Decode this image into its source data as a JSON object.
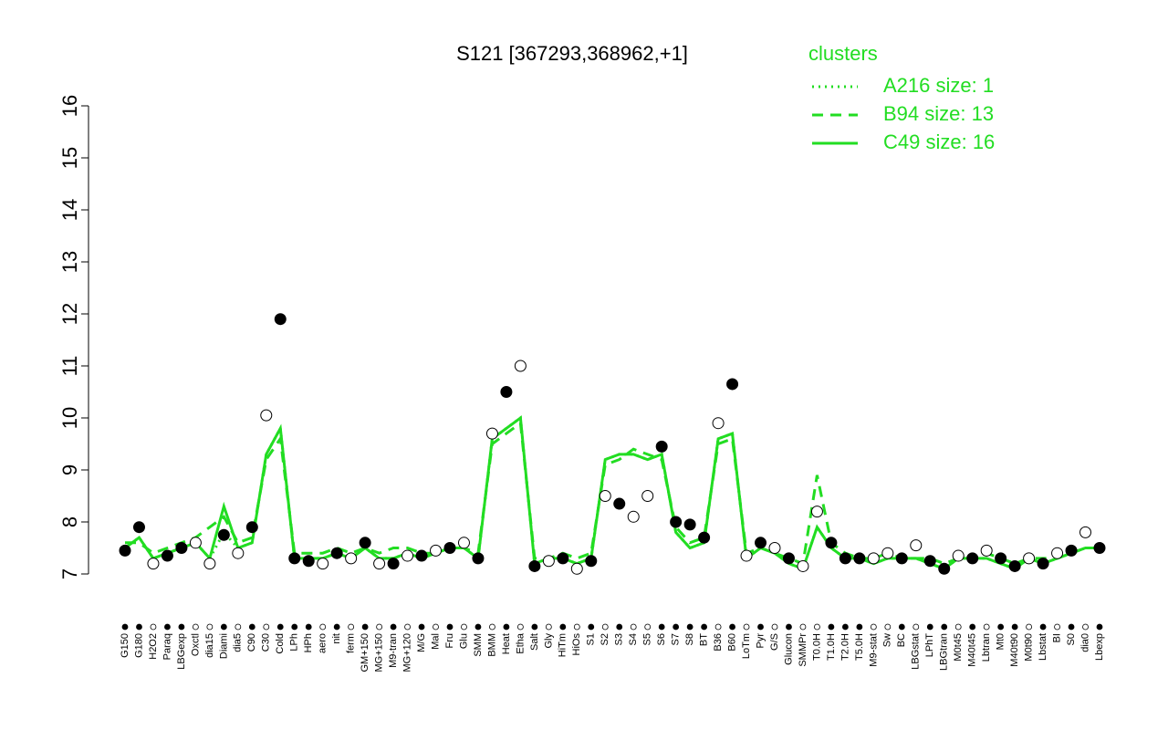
{
  "chart_data": {
    "type": "strip",
    "title": "S121 [367293,368962,+1]",
    "legend_title": "clusters",
    "legend_color": "#22dd22",
    "categories": [
      "G150",
      "G180",
      "H2O2",
      "Paraq",
      "LBGexp",
      "Oxctl",
      "dia15",
      "Diami",
      "dia5",
      "C90",
      "C30",
      "Cold",
      "LPh",
      "HPh",
      "aero",
      "nit",
      "ferm",
      "GM+150",
      "MG+150",
      "M9-tran",
      "MG+120",
      "M/G",
      "Mal",
      "Fru",
      "Glu",
      "SMM",
      "BMM",
      "Heat",
      "Etha",
      "Salt",
      "Gly",
      "HiTm",
      "HiOs",
      "S1",
      "S2",
      "S3",
      "S4",
      "S5",
      "S6",
      "S7",
      "S8",
      "BT",
      "B36",
      "B60",
      "LoTm",
      "Pyr",
      "G/S",
      "Glucon",
      "SMMPr",
      "T0.0H",
      "T1.0H",
      "T2.0H",
      "T5.0H",
      "M9-stat",
      "Sw",
      "BC",
      "LBGstat",
      "LPhT",
      "LBGtran",
      "M0t45",
      "M40t45",
      "Lbtran",
      "Mt0",
      "M40t90",
      "M0t90",
      "Lbstat",
      "BI",
      "S0",
      "dia0",
      "Lbexp"
    ],
    "values": [
      7.45,
      7.9,
      7.2,
      7.35,
      7.5,
      7.6,
      7.2,
      7.75,
      7.4,
      7.9,
      10.05,
      11.9,
      7.3,
      7.25,
      7.2,
      7.4,
      7.3,
      7.6,
      7.2,
      7.2,
      7.35,
      7.35,
      7.45,
      7.5,
      7.6,
      7.3,
      9.7,
      10.5,
      11.0,
      7.15,
      7.25,
      7.3,
      7.1,
      7.25,
      8.5,
      8.35,
      8.1,
      8.5,
      9.45,
      8.0,
      7.95,
      7.7,
      9.9,
      10.65,
      7.35,
      7.6,
      7.5,
      7.3,
      7.15,
      8.2,
      7.6,
      7.3,
      7.3,
      7.3,
      7.4,
      7.3,
      7.55,
      7.25,
      7.1,
      7.35,
      7.3,
      7.45,
      7.3,
      7.15,
      7.3,
      7.2,
      7.4,
      7.45,
      7.8,
      7.5
    ],
    "point_fills": [
      "#000000",
      "#000000",
      "#ffffff",
      "#000000",
      "#000000",
      "#ffffff",
      "#ffffff",
      "#000000",
      "#ffffff",
      "#000000",
      "#ffffff",
      "#000000",
      "#000000",
      "#000000",
      "#ffffff",
      "#000000",
      "#ffffff",
      "#000000",
      "#ffffff",
      "#000000",
      "#ffffff",
      "#000000",
      "#ffffff",
      "#000000",
      "#ffffff",
      "#000000",
      "#ffffff",
      "#000000",
      "#ffffff",
      "#000000",
      "#ffffff",
      "#000000",
      "#ffffff",
      "#000000",
      "#ffffff",
      "#000000",
      "#ffffff",
      "#ffffff",
      "#000000",
      "#000000",
      "#000000",
      "#000000",
      "#ffffff",
      "#000000",
      "#ffffff",
      "#000000",
      "#ffffff",
      "#000000",
      "#ffffff",
      "#ffffff",
      "#000000",
      "#000000",
      "#000000",
      "#ffffff",
      "#ffffff",
      "#000000",
      "#ffffff",
      "#000000",
      "#000000",
      "#ffffff",
      "#000000",
      "#ffffff",
      "#000000",
      "#000000",
      "#ffffff",
      "#000000",
      "#ffffff",
      "#000000",
      "#ffffff",
      "#000000"
    ],
    "series": [
      {
        "name": "A216 size: 1",
        "color": "#22dd22",
        "dash": "2,5",
        "values": [
          7.5,
          7.7,
          7.3,
          7.4,
          7.5,
          7.6,
          7.3,
          7.8,
          7.5,
          7.6,
          9.3,
          9.8,
          7.3,
          7.3,
          7.3,
          7.4,
          7.3,
          7.5,
          7.3,
          7.3,
          7.4,
          7.3,
          7.4,
          7.5,
          7.5,
          7.3,
          9.6,
          9.8,
          10.0,
          7.2,
          7.3,
          7.3,
          7.2,
          7.3,
          9.2,
          9.3,
          9.3,
          9.2,
          9.3,
          7.8,
          7.5,
          7.6,
          9.6,
          9.7,
          7.3,
          7.5,
          7.4,
          7.2,
          7.1,
          7.9,
          7.5,
          7.3,
          7.3,
          7.2,
          7.3,
          7.3,
          7.3,
          7.2,
          7.1,
          7.3,
          7.3,
          7.3,
          7.2,
          7.1,
          7.3,
          7.2,
          7.3,
          7.4,
          7.5,
          7.5
        ]
      },
      {
        "name": "B94 size: 13",
        "color": "#22dd22",
        "dash": "12,8",
        "values": [
          7.6,
          7.6,
          7.4,
          7.5,
          7.6,
          7.7,
          7.9,
          8.1,
          7.6,
          7.7,
          9.2,
          9.6,
          7.4,
          7.4,
          7.4,
          7.5,
          7.4,
          7.5,
          7.4,
          7.5,
          7.5,
          7.4,
          7.4,
          7.5,
          7.5,
          7.4,
          9.5,
          9.7,
          9.9,
          7.3,
          7.3,
          7.4,
          7.3,
          7.4,
          9.1,
          9.2,
          9.4,
          9.3,
          9.2,
          7.9,
          7.6,
          7.7,
          9.5,
          9.6,
          7.4,
          7.5,
          7.4,
          7.3,
          7.2,
          8.9,
          7.6,
          7.4,
          7.3,
          7.3,
          7.4,
          7.3,
          7.3,
          7.3,
          7.2,
          7.3,
          7.3,
          7.4,
          7.3,
          7.2,
          7.3,
          7.3,
          7.3,
          7.4,
          7.5,
          7.5
        ]
      },
      {
        "name": "C49 size: 16",
        "color": "#22dd22",
        "dash": "",
        "values": [
          7.5,
          7.7,
          7.3,
          7.4,
          7.5,
          7.6,
          7.3,
          8.3,
          7.5,
          7.6,
          9.3,
          9.8,
          7.3,
          7.3,
          7.3,
          7.4,
          7.3,
          7.5,
          7.3,
          7.3,
          7.4,
          7.3,
          7.4,
          7.5,
          7.5,
          7.3,
          9.6,
          9.8,
          10.0,
          7.2,
          7.3,
          7.3,
          7.2,
          7.3,
          9.2,
          9.3,
          9.3,
          9.2,
          9.3,
          7.8,
          7.5,
          7.6,
          9.6,
          9.7,
          7.3,
          7.5,
          7.4,
          7.2,
          7.1,
          7.9,
          7.5,
          7.3,
          7.3,
          7.2,
          7.3,
          7.3,
          7.3,
          7.2,
          7.1,
          7.3,
          7.3,
          7.3,
          7.2,
          7.1,
          7.3,
          7.2,
          7.3,
          7.4,
          7.5,
          7.5
        ]
      }
    ],
    "ylim": [
      7,
      16
    ],
    "yticks": [
      7,
      8,
      9,
      10,
      11,
      12,
      13,
      14,
      15,
      16
    ]
  }
}
